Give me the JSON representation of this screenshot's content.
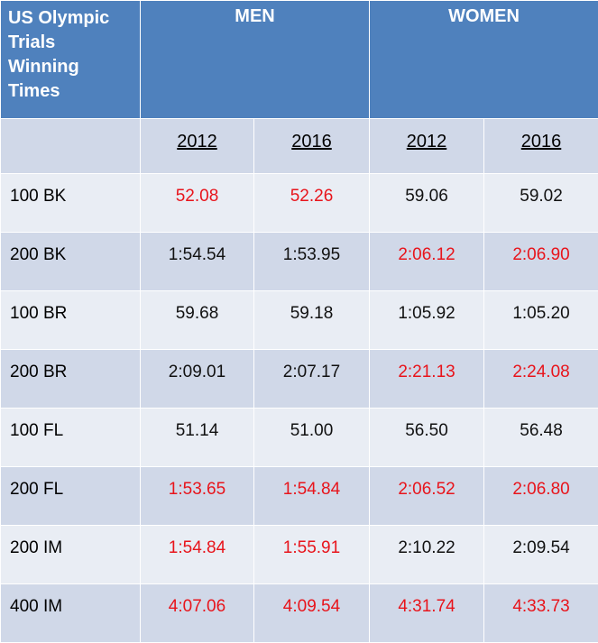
{
  "table": {
    "title": "US Olympic Trials Winning Times",
    "title_lines": [
      "US Olympic",
      "Trials",
      "Winning",
      "Times"
    ],
    "groups": [
      "MEN",
      "WOMEN"
    ],
    "years": [
      "2012",
      "2016",
      "2012",
      "2016"
    ],
    "colors": {
      "header_bg": "#4f81bd",
      "row_light": "#e9edf4",
      "row_dark": "#d0d8e8",
      "highlight": "#e8141b",
      "normal": "#111111"
    },
    "rows": [
      {
        "event": "100 BK",
        "cells": [
          {
            "v": "52.08",
            "red": true
          },
          {
            "v": "52.26",
            "red": true
          },
          {
            "v": "59.06",
            "red": false
          },
          {
            "v": "59.02",
            "red": false
          }
        ]
      },
      {
        "event": "200 BK",
        "cells": [
          {
            "v": "1:54.54",
            "red": false
          },
          {
            "v": "1:53.95",
            "red": false
          },
          {
            "v": "2:06.12",
            "red": true
          },
          {
            "v": "2:06.90",
            "red": true
          }
        ]
      },
      {
        "event": "100 BR",
        "cells": [
          {
            "v": "59.68",
            "red": false
          },
          {
            "v": "59.18",
            "red": false
          },
          {
            "v": "1:05.92",
            "red": false
          },
          {
            "v": "1:05.20",
            "red": false
          }
        ]
      },
      {
        "event": "200 BR",
        "cells": [
          {
            "v": "2:09.01",
            "red": false
          },
          {
            "v": "2:07.17",
            "red": false
          },
          {
            "v": "2:21.13",
            "red": true
          },
          {
            "v": "2:24.08",
            "red": true
          }
        ]
      },
      {
        "event": "100 FL",
        "cells": [
          {
            "v": "51.14",
            "red": false
          },
          {
            "v": "51.00",
            "red": false
          },
          {
            "v": "56.50",
            "red": false
          },
          {
            "v": "56.48",
            "red": false
          }
        ]
      },
      {
        "event": "200 FL",
        "cells": [
          {
            "v": "1:53.65",
            "red": true
          },
          {
            "v": "1:54.84",
            "red": true
          },
          {
            "v": "2:06.52",
            "red": true
          },
          {
            "v": "2:06.80",
            "red": true
          }
        ]
      },
      {
        "event": "200 IM",
        "cells": [
          {
            "v": "1:54.84",
            "red": true
          },
          {
            "v": "1:55.91",
            "red": true
          },
          {
            "v": "2:10.22",
            "red": false
          },
          {
            "v": "2:09.54",
            "red": false
          }
        ]
      },
      {
        "event": "400 IM",
        "cells": [
          {
            "v": "4:07.06",
            "red": true
          },
          {
            "v": "4:09.54",
            "red": true
          },
          {
            "v": "4:31.74",
            "red": true
          },
          {
            "v": "4:33.73",
            "red": true
          }
        ]
      }
    ]
  }
}
